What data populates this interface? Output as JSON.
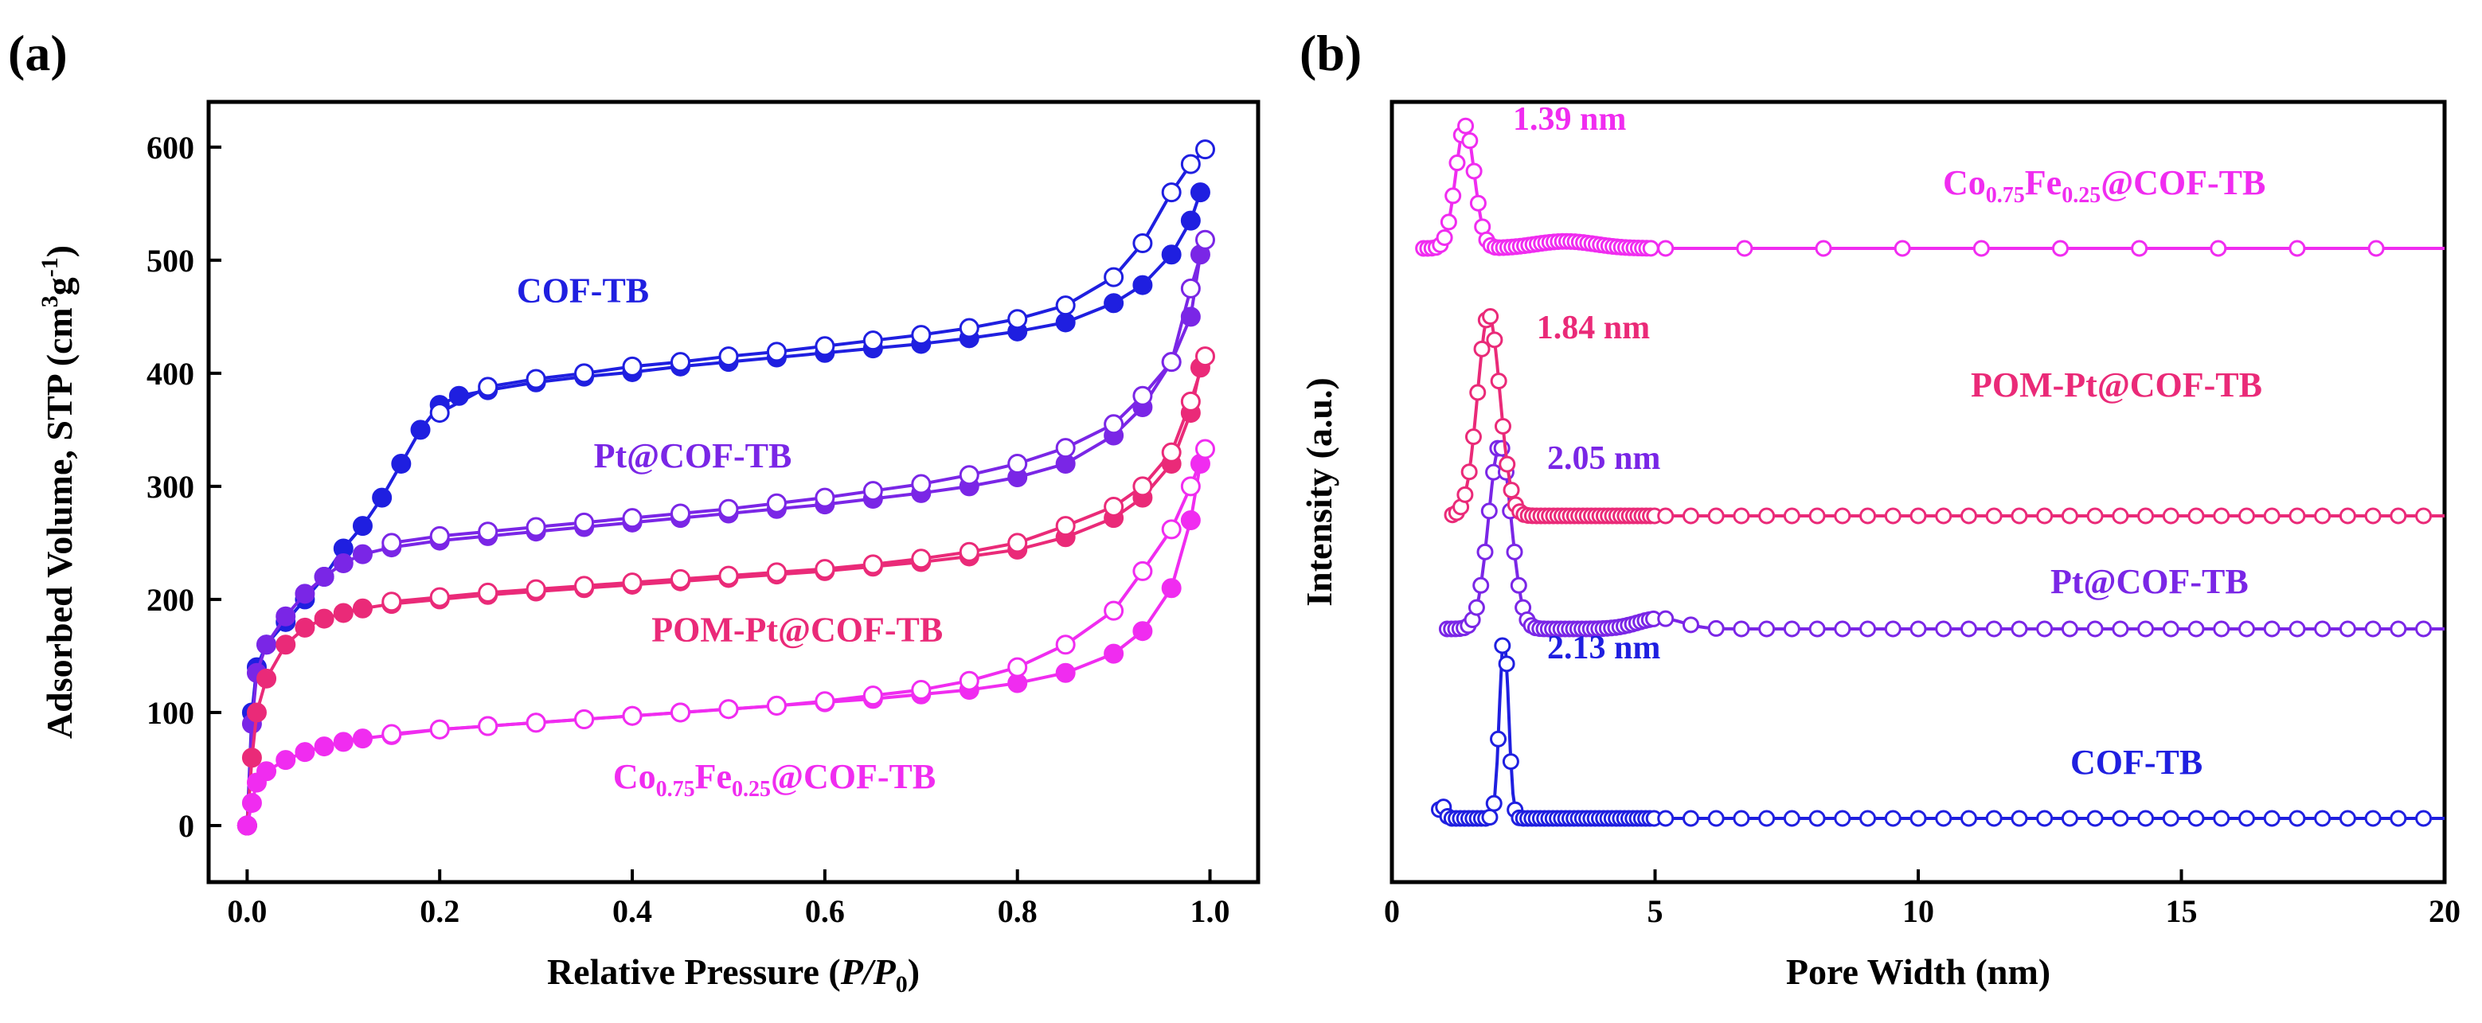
{
  "chart_data": [
    {
      "panel_label": "(a)",
      "type": "line",
      "xlabel": "Relative Pressure",
      "xlabel_italic": "P/P",
      "xlabel_sub": "0",
      "ylabel": "Adsorbed Volume, STP (cm",
      "ylabel_sup1": "3",
      "ylabel_mid": "g",
      "ylabel_sup2": "-1",
      "ylabel_end": ")",
      "xlim": [
        -0.04,
        1.05
      ],
      "ylim": [
        -50,
        640
      ],
      "xticks": [
        "0.0",
        "0.2",
        "0.4",
        "0.6",
        "0.8",
        "1.0"
      ],
      "xtick_values": [
        0,
        0.2,
        0.4,
        0.6,
        0.8,
        1.0
      ],
      "yticks": [
        "0",
        "100",
        "200",
        "300",
        "400",
        "500",
        "600"
      ],
      "ytick_values": [
        0,
        100,
        200,
        300,
        400,
        500,
        600
      ],
      "series": [
        {
          "name": "COF-TB",
          "color": "#1f1fe0",
          "adsorption": [
            [
              0,
              0
            ],
            [
              0.005,
              100
            ],
            [
              0.01,
              140
            ],
            [
              0.02,
              160
            ],
            [
              0.04,
              180
            ],
            [
              0.06,
              200
            ],
            [
              0.08,
              220
            ],
            [
              0.1,
              245
            ],
            [
              0.12,
              265
            ],
            [
              0.14,
              290
            ],
            [
              0.16,
              320
            ],
            [
              0.18,
              350
            ],
            [
              0.2,
              372
            ],
            [
              0.22,
              380
            ],
            [
              0.25,
              385
            ],
            [
              0.3,
              392
            ],
            [
              0.35,
              397
            ],
            [
              0.4,
              401
            ],
            [
              0.45,
              406
            ],
            [
              0.5,
              410
            ],
            [
              0.55,
              414
            ],
            [
              0.6,
              418
            ],
            [
              0.65,
              422
            ],
            [
              0.7,
              426
            ],
            [
              0.75,
              431
            ],
            [
              0.8,
              437
            ],
            [
              0.85,
              445
            ],
            [
              0.9,
              462
            ],
            [
              0.93,
              478
            ],
            [
              0.96,
              505
            ],
            [
              0.98,
              535
            ],
            [
              0.99,
              560
            ]
          ],
          "desorption": [
            [
              0.995,
              598
            ],
            [
              0.98,
              585
            ],
            [
              0.96,
              560
            ],
            [
              0.93,
              515
            ],
            [
              0.9,
              485
            ],
            [
              0.85,
              460
            ],
            [
              0.8,
              448
            ],
            [
              0.75,
              440
            ],
            [
              0.7,
              434
            ],
            [
              0.65,
              429
            ],
            [
              0.6,
              424
            ],
            [
              0.55,
              419
            ],
            [
              0.5,
              415
            ],
            [
              0.45,
              410
            ],
            [
              0.4,
              406
            ],
            [
              0.35,
              400
            ],
            [
              0.3,
              395
            ],
            [
              0.25,
              388
            ],
            [
              0.2,
              365
            ]
          ]
        },
        {
          "name": "Pt@COF-TB",
          "color": "#7a26e6",
          "adsorption": [
            [
              0,
              0
            ],
            [
              0.005,
              90
            ],
            [
              0.01,
              135
            ],
            [
              0.02,
              160
            ],
            [
              0.04,
              185
            ],
            [
              0.06,
              205
            ],
            [
              0.08,
              220
            ],
            [
              0.1,
              232
            ],
            [
              0.12,
              240
            ],
            [
              0.15,
              246
            ],
            [
              0.2,
              252
            ],
            [
              0.25,
              256
            ],
            [
              0.3,
              260
            ],
            [
              0.35,
              264
            ],
            [
              0.4,
              268
            ],
            [
              0.45,
              272
            ],
            [
              0.5,
              276
            ],
            [
              0.55,
              280
            ],
            [
              0.6,
              284
            ],
            [
              0.65,
              289
            ],
            [
              0.7,
              294
            ],
            [
              0.75,
              300
            ],
            [
              0.8,
              308
            ],
            [
              0.85,
              320
            ],
            [
              0.9,
              345
            ],
            [
              0.93,
              370
            ],
            [
              0.96,
              410
            ],
            [
              0.98,
              450
            ],
            [
              0.99,
              505
            ]
          ],
          "desorption": [
            [
              0.995,
              518
            ],
            [
              0.98,
              475
            ],
            [
              0.96,
              410
            ],
            [
              0.93,
              380
            ],
            [
              0.9,
              355
            ],
            [
              0.85,
              334
            ],
            [
              0.8,
              320
            ],
            [
              0.75,
              310
            ],
            [
              0.7,
              302
            ],
            [
              0.65,
              296
            ],
            [
              0.6,
              290
            ],
            [
              0.55,
              285
            ],
            [
              0.5,
              280
            ],
            [
              0.45,
              276
            ],
            [
              0.4,
              272
            ],
            [
              0.35,
              268
            ],
            [
              0.3,
              264
            ],
            [
              0.25,
              260
            ],
            [
              0.2,
              256
            ],
            [
              0.15,
              250
            ]
          ]
        },
        {
          "name": "POM-Pt@COF-TB",
          "color": "#ea2a78",
          "adsorption": [
            [
              0,
              0
            ],
            [
              0.005,
              60
            ],
            [
              0.01,
              100
            ],
            [
              0.02,
              130
            ],
            [
              0.04,
              160
            ],
            [
              0.06,
              175
            ],
            [
              0.08,
              183
            ],
            [
              0.1,
              188
            ],
            [
              0.12,
              192
            ],
            [
              0.15,
              196
            ],
            [
              0.2,
              200
            ],
            [
              0.25,
              204
            ],
            [
              0.3,
              207
            ],
            [
              0.35,
              210
            ],
            [
              0.4,
              213
            ],
            [
              0.45,
              216
            ],
            [
              0.5,
              219
            ],
            [
              0.55,
              222
            ],
            [
              0.6,
              225
            ],
            [
              0.65,
              229
            ],
            [
              0.7,
              233
            ],
            [
              0.75,
              238
            ],
            [
              0.8,
              244
            ],
            [
              0.85,
              255
            ],
            [
              0.9,
              272
            ],
            [
              0.93,
              290
            ],
            [
              0.96,
              320
            ],
            [
              0.98,
              365
            ],
            [
              0.99,
              405
            ]
          ],
          "desorption": [
            [
              0.995,
              415
            ],
            [
              0.98,
              375
            ],
            [
              0.96,
              330
            ],
            [
              0.93,
              300
            ],
            [
              0.9,
              282
            ],
            [
              0.85,
              265
            ],
            [
              0.8,
              250
            ],
            [
              0.75,
              242
            ],
            [
              0.7,
              236
            ],
            [
              0.65,
              231
            ],
            [
              0.6,
              227
            ],
            [
              0.55,
              224
            ],
            [
              0.5,
              221
            ],
            [
              0.45,
              218
            ],
            [
              0.4,
              215
            ],
            [
              0.35,
              212
            ],
            [
              0.3,
              209
            ],
            [
              0.25,
              206
            ],
            [
              0.2,
              202
            ],
            [
              0.15,
              198
            ]
          ]
        },
        {
          "name": "Co0.75Fe0.25@COF-TB",
          "color": "#f02cf0",
          "adsorption": [
            [
              0,
              0
            ],
            [
              0.005,
              20
            ],
            [
              0.01,
              38
            ],
            [
              0.02,
              48
            ],
            [
              0.04,
              58
            ],
            [
              0.06,
              65
            ],
            [
              0.08,
              70
            ],
            [
              0.1,
              74
            ],
            [
              0.12,
              77
            ],
            [
              0.15,
              80
            ],
            [
              0.2,
              85
            ],
            [
              0.25,
              88
            ],
            [
              0.3,
              91
            ],
            [
              0.35,
              94
            ],
            [
              0.4,
              97
            ],
            [
              0.45,
              100
            ],
            [
              0.5,
              103
            ],
            [
              0.55,
              106
            ],
            [
              0.6,
              109
            ],
            [
              0.65,
              112
            ],
            [
              0.7,
              116
            ],
            [
              0.75,
              120
            ],
            [
              0.8,
              126
            ],
            [
              0.85,
              135
            ],
            [
              0.9,
              152
            ],
            [
              0.93,
              172
            ],
            [
              0.96,
              210
            ],
            [
              0.98,
              270
            ],
            [
              0.99,
              320
            ]
          ],
          "desorption": [
            [
              0.995,
              333
            ],
            [
              0.98,
              300
            ],
            [
              0.96,
              262
            ],
            [
              0.93,
              225
            ],
            [
              0.9,
              190
            ],
            [
              0.85,
              160
            ],
            [
              0.8,
              140
            ],
            [
              0.75,
              128
            ],
            [
              0.7,
              120
            ],
            [
              0.65,
              115
            ],
            [
              0.6,
              110
            ],
            [
              0.55,
              106
            ],
            [
              0.5,
              103
            ],
            [
              0.45,
              100
            ],
            [
              0.4,
              97
            ],
            [
              0.35,
              94
            ],
            [
              0.3,
              91
            ],
            [
              0.25,
              88
            ],
            [
              0.2,
              85
            ],
            [
              0.15,
              81
            ]
          ]
        }
      ],
      "labels": [
        {
          "text": "COF-TB",
          "color": "#1f1fe0"
        },
        {
          "text": "Pt@COF-TB",
          "color": "#7a26e6"
        },
        {
          "text": "POM-Pt@COF-TB",
          "color": "#ea2a78"
        },
        {
          "text_main": "Co",
          "sub1": "0.75",
          "mid": "Fe",
          "sub2": "0.25",
          "tail": "@COF-TB",
          "color": "#f02cf0"
        }
      ]
    },
    {
      "panel_label": "(b)",
      "type": "line",
      "xlabel": "Pore Width (nm)",
      "ylabel": "Intensity (a.u.)",
      "xlim": [
        0,
        20
      ],
      "xticks": [
        "0",
        "5",
        "10",
        "15",
        "20"
      ],
      "xtick_values": [
        0,
        5,
        10,
        15,
        20
      ],
      "series": [
        {
          "name": "COF-TB",
          "color": "#1f1fe0",
          "peak_label": "2.13 nm",
          "peak_nm": 2.13,
          "peak_width": 0.12,
          "peak_height": 0.21,
          "baseline": 0.0,
          "offset": 0.0
        },
        {
          "name": "Pt@COF-TB",
          "color": "#7a26e6",
          "peak_label": "2.05 nm",
          "peak_nm": 2.05,
          "peak_width": 0.3,
          "peak_height": 0.21,
          "baseline": 0.0,
          "offset": 1.0
        },
        {
          "name": "POM-Pt@COF-TB",
          "color": "#ea2a78",
          "peak_label": "1.84 nm",
          "peak_nm": 1.84,
          "peak_width": 0.3,
          "peak_height": 0.23,
          "baseline": 0.0,
          "offset": 2.0
        },
        {
          "name": "Co0.75Fe0.25@COF-TB",
          "color": "#f02cf0",
          "peak_label": "1.39 nm",
          "peak_nm": 1.39,
          "peak_width": 0.25,
          "peak_height": 0.14,
          "baseline": 0.0,
          "offset": 2.95
        }
      ],
      "labels": [
        {
          "text": "COF-TB",
          "color": "#1f1fe0"
        },
        {
          "text": "Pt@COF-TB",
          "color": "#7a26e6"
        },
        {
          "text": "POM-Pt@COF-TB",
          "color": "#ea2a78"
        },
        {
          "text_main": "Co",
          "sub1": "0.75",
          "mid": "Fe",
          "sub2": "0.25",
          "tail": "@COF-TB",
          "color": "#f02cf0"
        }
      ]
    }
  ]
}
